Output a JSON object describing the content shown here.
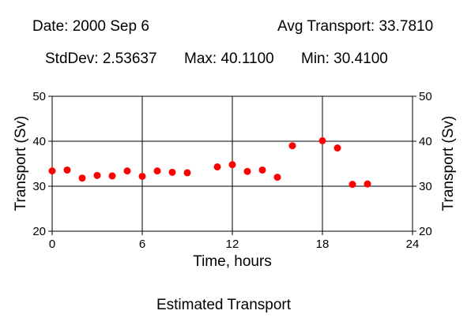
{
  "header": {
    "date_text": "Date: 2000 Sep 6",
    "avg_text": "Avg Transport: 33.7810",
    "stddev_text": "StdDev: 2.53637",
    "max_text": "Max: 40.1100",
    "min_text": "Min: 30.4100"
  },
  "chart_data": {
    "type": "scatter",
    "title": "Estimated Transport",
    "xlabel": "Time, hours",
    "ylabel": "Transport (Sv)",
    "xlim": [
      0,
      24
    ],
    "ylim": [
      20,
      50
    ],
    "xticks": [
      0,
      6,
      12,
      18,
      24
    ],
    "yticks": [
      20,
      30,
      40,
      50
    ],
    "grid": true,
    "right_axis": true,
    "marker_color": "#ff0000",
    "series": [
      {
        "x": [
          0,
          1,
          2,
          3,
          4,
          5,
          6,
          7,
          8,
          9,
          11,
          12,
          13,
          14,
          15,
          16,
          18,
          19,
          20,
          21
        ],
        "y": [
          33.4,
          33.6,
          31.8,
          32.4,
          32.3,
          33.4,
          32.2,
          33.4,
          33.1,
          33.0,
          34.3,
          34.8,
          33.3,
          33.6,
          32.0,
          39.0,
          40.11,
          38.5,
          30.41,
          30.5
        ]
      }
    ]
  }
}
